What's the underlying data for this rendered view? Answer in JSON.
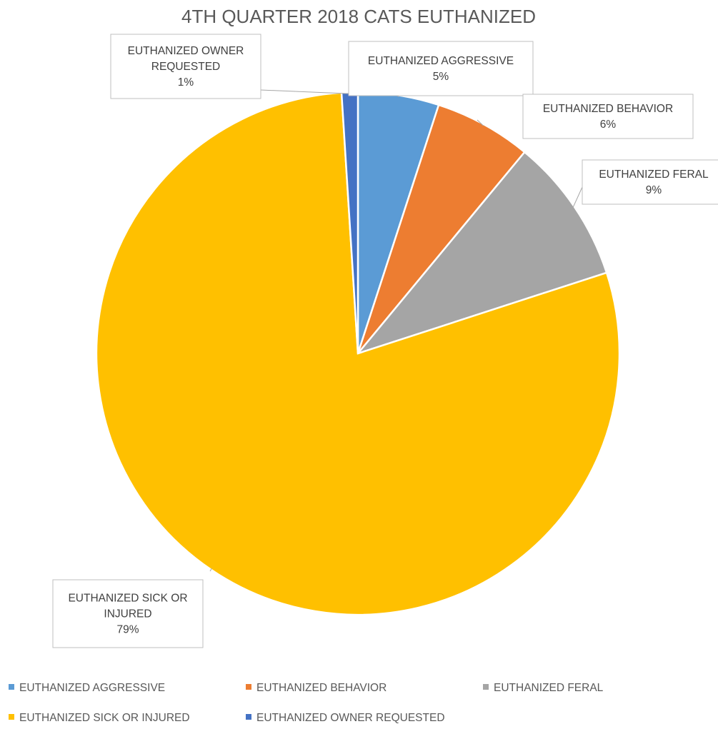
{
  "chart_data": {
    "type": "pie",
    "title": "4TH QUARTER 2018 CATS EUTHANIZED",
    "categories": [
      "EUTHANIZED AGGRESSIVE",
      "EUTHANIZED BEHAVIOR",
      "EUTHANIZED FERAL",
      "EUTHANIZED SICK OR INJURED",
      "EUTHANIZED OWNER REQUESTED"
    ],
    "values": [
      5,
      6,
      9,
      79,
      1
    ],
    "data_labels": [
      "5%",
      "6%",
      "9%",
      "79%",
      "1%"
    ],
    "colors": [
      "#5B9BD5",
      "#ED7D31",
      "#A5A5A5",
      "#FFC000",
      "#4472C4"
    ],
    "legend_position": "bottom"
  }
}
